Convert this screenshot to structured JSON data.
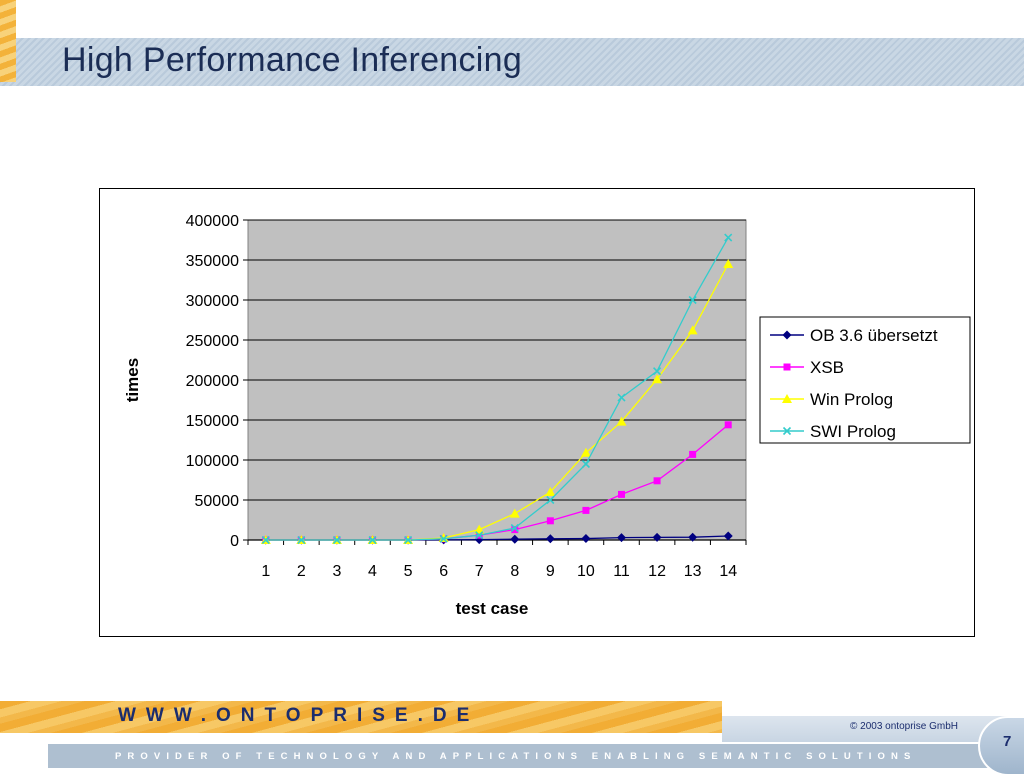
{
  "slide": {
    "title": "High Performance Inferencing",
    "footer_url": "WWW.ONTOPRISE.DE",
    "copyright": "©  2003  ontoprise GmbH",
    "tagline": "PROVIDER OF TECHNOLOGY AND APPLICATIONS ENABLING SEMANTIC SOLUTIONS",
    "page_number": "7"
  },
  "chart_data": {
    "type": "line",
    "xlabel": "test case",
    "ylabel": "times",
    "ylim": [
      0,
      400000
    ],
    "yticks": [
      0,
      50000,
      100000,
      150000,
      200000,
      250000,
      300000,
      350000,
      400000
    ],
    "categories": [
      "1",
      "2",
      "3",
      "4",
      "5",
      "6",
      "7",
      "8",
      "9",
      "10",
      "11",
      "12",
      "13",
      "14"
    ],
    "grid": true,
    "plot_background": "#c0c0c0",
    "legend_position": "right",
    "series": [
      {
        "name": "OB 3.6 übersetzt",
        "color": "#000080",
        "marker": "diamond",
        "values": [
          0,
          0,
          0,
          0,
          0,
          200,
          500,
          1000,
          1500,
          1800,
          3000,
          3300,
          3500,
          5000
        ]
      },
      {
        "name": "XSB",
        "color": "#ff00ff",
        "marker": "square",
        "values": [
          0,
          0,
          0,
          0,
          0,
          1500,
          6000,
          13000,
          24000,
          37000,
          57000,
          74000,
          107000,
          144000
        ]
      },
      {
        "name": "Win Prolog",
        "color": "#ffff00",
        "marker": "triangle",
        "values": [
          0,
          0,
          0,
          0,
          0,
          2500,
          13000,
          33000,
          60000,
          109000,
          148000,
          201000,
          262000,
          345000
        ]
      },
      {
        "name": "SWI Prolog",
        "color": "#33cccc",
        "marker": "x",
        "values": [
          0,
          0,
          0,
          0,
          0,
          1500,
          6000,
          15000,
          50000,
          95000,
          178000,
          211000,
          300000,
          378000
        ]
      }
    ]
  }
}
